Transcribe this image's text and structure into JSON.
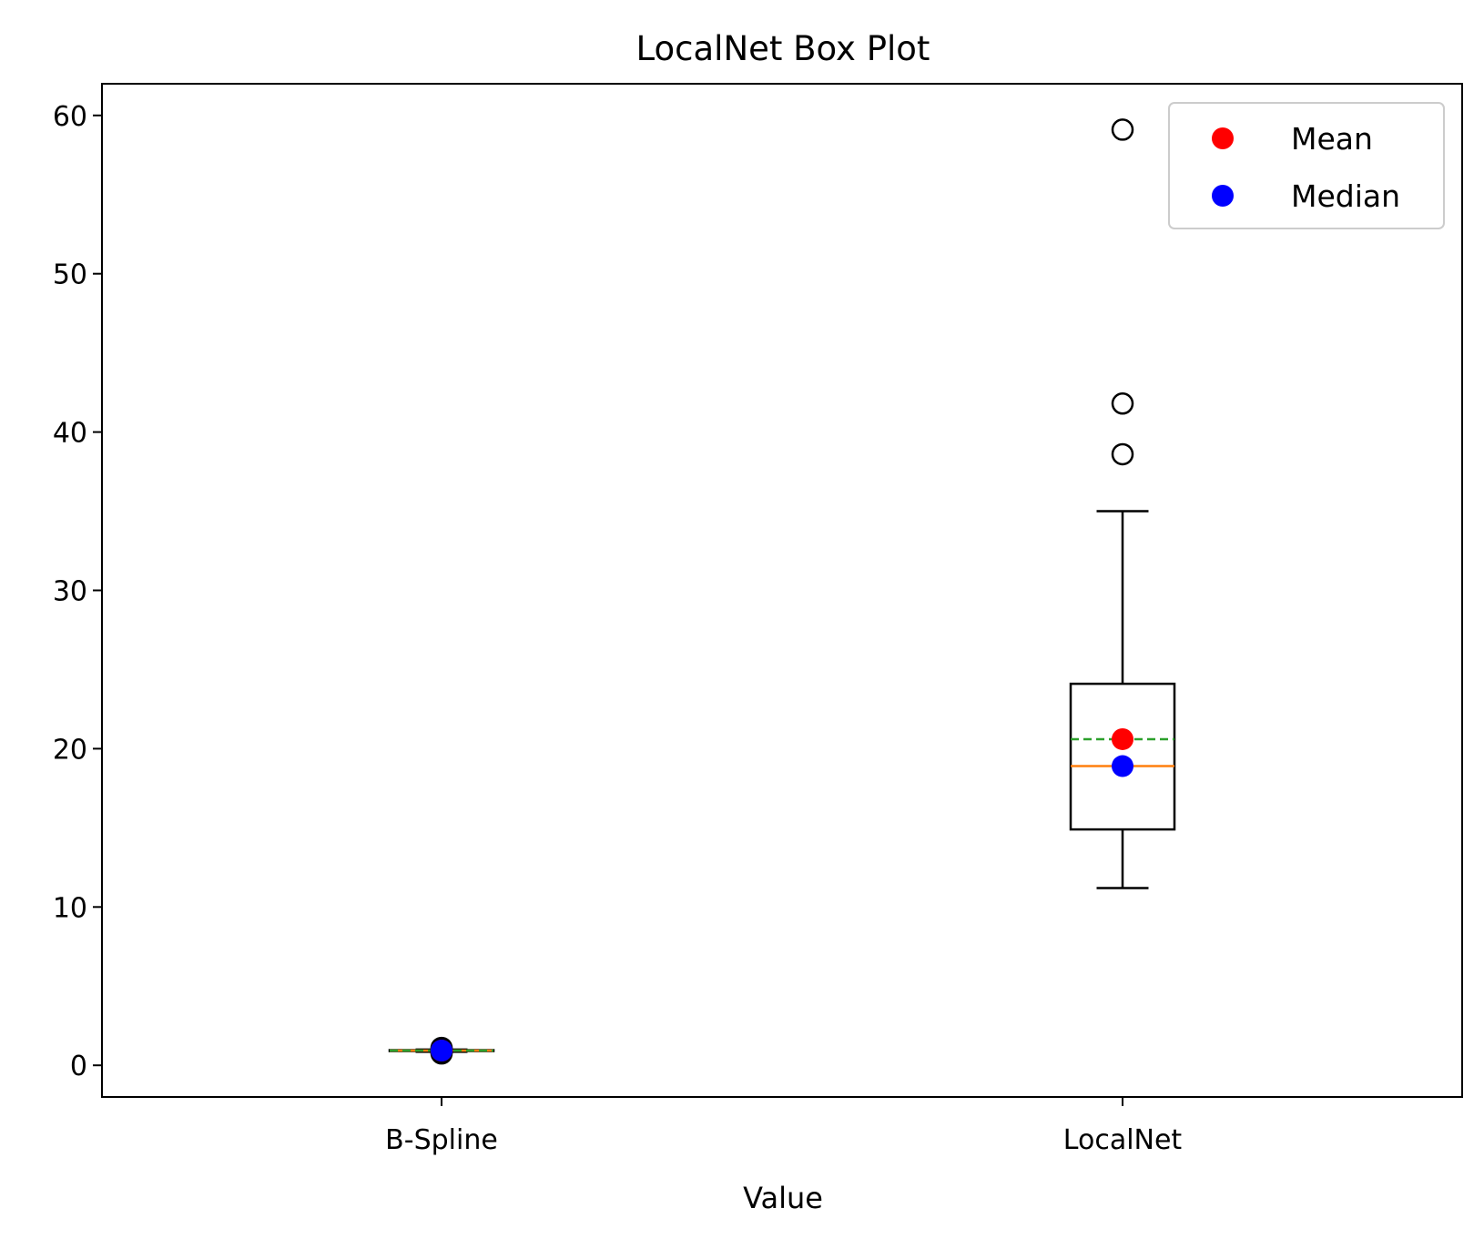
{
  "chart_data": {
    "type": "box",
    "title": "LocalNet Box Plot",
    "xlabel": "Value",
    "ylabel": "",
    "ylim": [
      -2,
      62
    ],
    "yticks": [
      0,
      10,
      20,
      30,
      40,
      50,
      60
    ],
    "grid": false,
    "legend_position": "top-right",
    "legend": [
      {
        "label": "Mean",
        "color": "#ff0000"
      },
      {
        "label": "Median",
        "color": "#0000ff"
      }
    ],
    "categories": [
      "B-Spline",
      "LocalNet"
    ],
    "boxes": [
      {
        "label": "B-Spline",
        "whisker_low": 0.85,
        "q1": 0.9,
        "median": 0.93,
        "mean": 0.93,
        "q3": 0.96,
        "whisker_high": 1.0,
        "outliers": [
          0.75,
          0.8,
          0.85,
          0.9,
          0.95,
          1.05,
          1.1
        ]
      },
      {
        "label": "LocalNet",
        "whisker_low": 11.2,
        "q1": 14.9,
        "median": 18.9,
        "mean": 20.6,
        "q3": 24.1,
        "whisker_high": 35.0,
        "outliers": [
          38.6,
          41.8,
          59.1
        ]
      }
    ],
    "colors": {
      "box": "#000000",
      "median_line": "#ff7f0e",
      "mean_line": "#2ca02c",
      "mean_marker": "#ff0000",
      "median_marker": "#0000ff"
    }
  }
}
